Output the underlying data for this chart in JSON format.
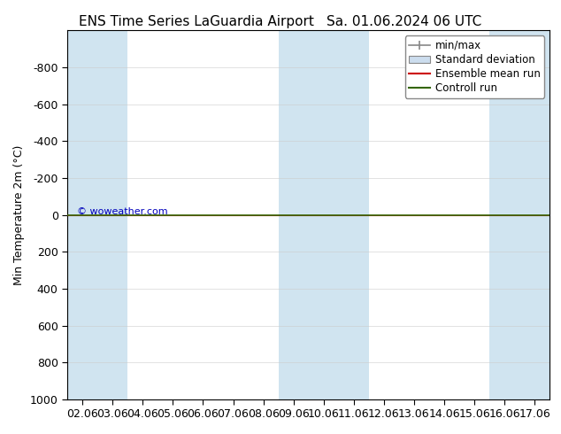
{
  "title_left": "ENS Time Series LaGuardia Airport",
  "title_right": "Sa. 01.06.2024 06 UTC",
  "ylabel": "Min Temperature 2m (°C)",
  "ylim": [
    -1000,
    1000
  ],
  "yticks": [
    -800,
    -600,
    -400,
    -200,
    0,
    200,
    400,
    600,
    800,
    1000
  ],
  "xtick_labels": [
    "02.06",
    "03.06",
    "04.06",
    "05.06",
    "06.06",
    "07.06",
    "08.06",
    "09.06",
    "10.06",
    "11.06",
    "12.06",
    "13.06",
    "14.06",
    "15.06",
    "16.06",
    "17.06"
  ],
  "xtick_positions": [
    0,
    1,
    2,
    3,
    4,
    5,
    6,
    7,
    8,
    9,
    10,
    11,
    12,
    13,
    14,
    15
  ],
  "plot_bg_white": "#ffffff",
  "band_color": "#d0e4f0",
  "band_indices": [
    0,
    1,
    7,
    8,
    9,
    14,
    15
  ],
  "green_line_color": "#336600",
  "red_line_color": "#cc0000",
  "watermark": "© woweather.com",
  "watermark_color": "#0000bb",
  "title_fontsize": 11,
  "axis_fontsize": 9,
  "legend_fontsize": 8.5
}
